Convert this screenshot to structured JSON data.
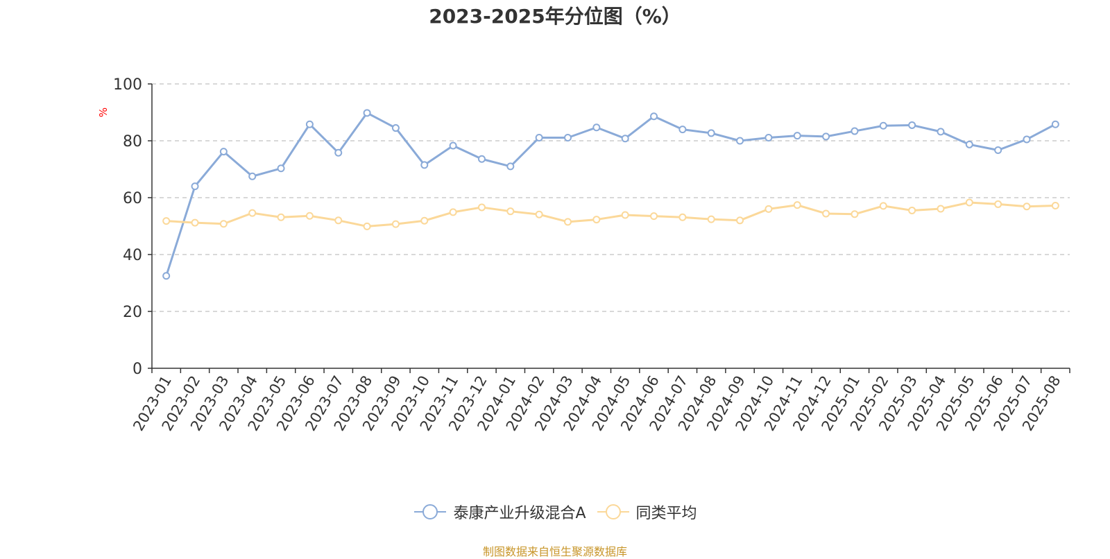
{
  "chart_data": {
    "type": "line",
    "title": "2023-2025年分位图（%）",
    "ylabel": "%",
    "xlabel": "",
    "ylim": [
      0,
      100
    ],
    "yticks": [
      0,
      20,
      40,
      60,
      80,
      100
    ],
    "grid": true,
    "legend_position": "bottom",
    "categories": [
      "2023-01",
      "2023-02",
      "2023-03",
      "2023-04",
      "2023-05",
      "2023-06",
      "2023-07",
      "2023-08",
      "2023-09",
      "2023-10",
      "2023-11",
      "2023-12",
      "2024-01",
      "2024-02",
      "2024-03",
      "2024-04",
      "2024-05",
      "2024-06",
      "2024-07",
      "2024-08",
      "2024-09",
      "2024-10",
      "2024-11",
      "2024-12",
      "2025-01",
      "2025-02",
      "2025-03",
      "2025-04",
      "2025-05",
      "2025-06",
      "2025-07",
      "2025-08"
    ],
    "series": [
      {
        "name": "泰康产业升级混合A",
        "color": "#8aaad8",
        "values": [
          32.5,
          64,
          76.2,
          67.5,
          70.3,
          85.8,
          75.8,
          89.8,
          84.5,
          71.5,
          78.3,
          73.6,
          71,
          81.1,
          81.1,
          84.7,
          80.8,
          88.6,
          84,
          82.7,
          80,
          81.1,
          81.8,
          81.5,
          83.4,
          85.3,
          85.5,
          83.2,
          78.7,
          76.7,
          80.5,
          85.8
        ]
      },
      {
        "name": "同类平均",
        "color": "#fbd899",
        "values": [
          51.8,
          51.2,
          50.8,
          54.6,
          53.1,
          53.6,
          52,
          49.9,
          50.7,
          51.9,
          54.9,
          56.6,
          55.2,
          54.1,
          51.5,
          52.3,
          53.9,
          53.5,
          53.1,
          52.4,
          52,
          56,
          57.4,
          54.4,
          54.2,
          57.1,
          55.5,
          56.1,
          58.3,
          57.7,
          56.9,
          57.2
        ]
      }
    ]
  },
  "source": {
    "text": "制图数据来自恒生聚源数据库",
    "color": "#c8962a"
  },
  "colors": {
    "axis": "#333333",
    "grid": "#cccccc",
    "ylabel": "#ff0000",
    "text": "#333333"
  }
}
